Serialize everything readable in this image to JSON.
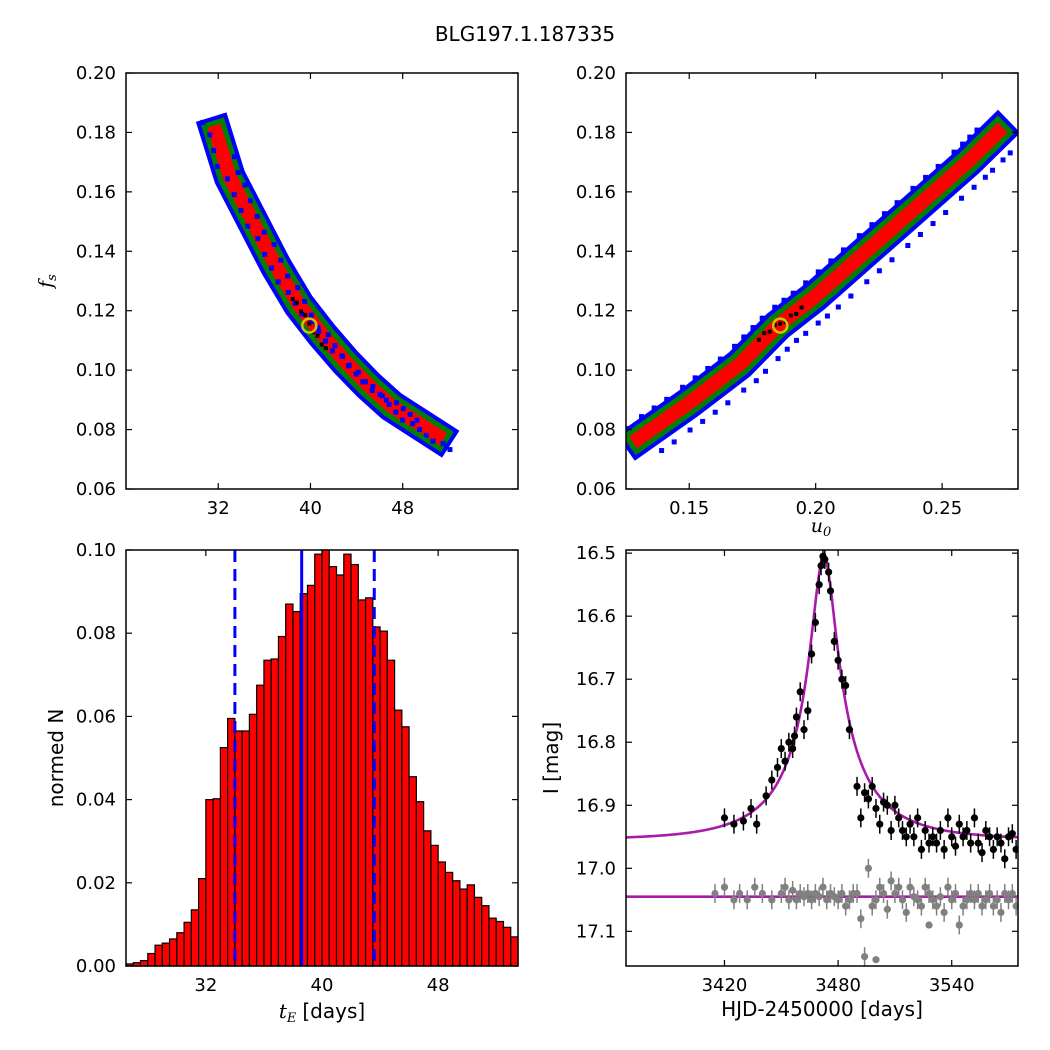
{
  "figure": {
    "title": "BLG197.1.187335"
  },
  "chart_data": [
    {
      "panel": "top-left",
      "type": "heatmap",
      "title": "",
      "xlabel": "",
      "ylabel": "f_s",
      "ylabel_math": {
        "base": "f",
        "sub": "s"
      },
      "xlim": [
        24,
        58
      ],
      "ylim": [
        0.06,
        0.2
      ],
      "xticks": [
        32,
        40,
        48
      ],
      "yticks": [
        0.06,
        0.08,
        0.1,
        0.12,
        0.14,
        0.16,
        0.18,
        0.2
      ],
      "ytick_labels": [
        "0.06",
        "0.08",
        "0.10",
        "0.12",
        "0.14",
        "0.16",
        "0.18",
        "0.20"
      ],
      "colors": {
        "outer": "#0000ff",
        "middle": "#008000",
        "inner": "#ff0000",
        "core": "#000000",
        "best_fit": "#c8c800"
      },
      "contour_centerline": [
        [
          31.8,
          0.18
        ],
        [
          33,
          0.165
        ],
        [
          35,
          0.15
        ],
        [
          37,
          0.135
        ],
        [
          39,
          0.122
        ],
        [
          41,
          0.112
        ],
        [
          43,
          0.103
        ],
        [
          45,
          0.095
        ],
        [
          47,
          0.088
        ],
        [
          49,
          0.083
        ],
        [
          51,
          0.078
        ]
      ],
      "best_fit": {
        "x": 39.9,
        "y": 0.115
      }
    },
    {
      "panel": "top-right",
      "type": "heatmap",
      "title": "",
      "xlabel": "u_0",
      "xlabel_math": {
        "base": "u",
        "sub": "0"
      },
      "ylabel": "",
      "xlim": [
        0.125,
        0.28
      ],
      "ylim": [
        0.06,
        0.2
      ],
      "xticks": [
        0.15,
        0.2,
        0.25
      ],
      "xtick_labels": [
        "0.15",
        "0.20",
        "0.25"
      ],
      "yticks": [
        0.06,
        0.08,
        0.1,
        0.12,
        0.14,
        0.16,
        0.18,
        0.2
      ],
      "ytick_labels": [
        "0.06",
        "0.08",
        "0.10",
        "0.12",
        "0.14",
        "0.16",
        "0.18",
        "0.20"
      ],
      "colors": {
        "outer": "#0000ff",
        "middle": "#008000",
        "inner": "#ff0000",
        "core": "#000000",
        "best_fit": "#c8c800"
      },
      "contour_centerline": [
        [
          0.13,
          0.077
        ],
        [
          0.15,
          0.089
        ],
        [
          0.17,
          0.102
        ],
        [
          0.185,
          0.115
        ],
        [
          0.2,
          0.125
        ],
        [
          0.22,
          0.14
        ],
        [
          0.24,
          0.155
        ],
        [
          0.26,
          0.17
        ],
        [
          0.272,
          0.18
        ]
      ],
      "best_fit": {
        "x": 0.186,
        "y": 0.115
      }
    },
    {
      "panel": "bottom-left",
      "type": "bar",
      "title": "",
      "xlabel": "[days]",
      "xlabel_math": {
        "base": "t",
        "sub": "E"
      },
      "ylabel": "normed N",
      "xlim": [
        26.5,
        53.5
      ],
      "ylim": [
        0,
        0.1
      ],
      "xticks": [
        32,
        40,
        48
      ],
      "yticks": [
        0,
        0.02,
        0.04,
        0.06,
        0.08,
        0.1
      ],
      "ytick_labels": [
        "0.00",
        "0.02",
        "0.04",
        "0.06",
        "0.08",
        "0.10"
      ],
      "bin_start": 26.5,
      "bin_width": 0.5,
      "values": [
        0.0005,
        0.0008,
        0.0013,
        0.003,
        0.005,
        0.0055,
        0.0065,
        0.008,
        0.0105,
        0.0135,
        0.021,
        0.04,
        0.0402,
        0.0525,
        0.0595,
        0.0565,
        0.0565,
        0.0605,
        0.0675,
        0.0735,
        0.0738,
        0.0792,
        0.087,
        0.0852,
        0.0895,
        0.0915,
        0.099,
        0.1,
        0.096,
        0.094,
        0.099,
        0.0965,
        0.088,
        0.0885,
        0.0815,
        0.0805,
        0.0735,
        0.0615,
        0.0575,
        0.0455,
        0.0395,
        0.0325,
        0.029,
        0.025,
        0.0225,
        0.0205,
        0.0185,
        0.0195,
        0.0165,
        0.0145,
        0.0115,
        0.0107,
        0.0093,
        0.007,
        0.0068,
        0.0058,
        0.0056,
        0.004,
        0.0032,
        0.0023,
        0.0016,
        0.0012,
        0.0008,
        0.0005,
        0.0002
      ],
      "vlines": {
        "median": 38.6,
        "lower": 34.0,
        "upper": 43.6
      },
      "colors": {
        "bar": "#ff0000",
        "line": "#0000ff"
      }
    },
    {
      "panel": "bottom-right",
      "type": "scatter",
      "title": "",
      "xlabel": "HJD-2450000 [days]",
      "ylabel": "I [mag]",
      "xlim": [
        3368,
        3575
      ],
      "ylim": [
        17.155,
        16.495
      ],
      "inverted_y": true,
      "xticks": [
        3420,
        3480,
        3540
      ],
      "yticks": [
        16.5,
        16.6,
        16.7,
        16.8,
        16.9,
        17.0,
        17.1
      ],
      "ytick_labels": [
        "16.5",
        "16.6",
        "16.7",
        "16.8",
        "16.9",
        "17.0",
        "17.1"
      ],
      "model": {
        "baseline": 16.955,
        "peak": 16.505,
        "t0": 3472.5,
        "tE": 38.6,
        "u0": 0.186
      },
      "series": [
        {
          "color": "#000000",
          "x": [
            3420,
            3425,
            3430,
            3434,
            3437,
            3442,
            3445,
            3448,
            3450,
            3452,
            3454,
            3456,
            3457,
            3458,
            3460,
            3462,
            3464,
            3466,
            3468,
            3470,
            3471,
            3472,
            3473,
            3475,
            3476,
            3478,
            3480,
            3482,
            3484,
            3486,
            3490,
            3492,
            3494,
            3496,
            3498,
            3500,
            3502,
            3504,
            3506,
            3508,
            3510,
            3512,
            3514,
            3516,
            3518,
            3520,
            3522,
            3524,
            3526,
            3528,
            3530,
            3532,
            3534,
            3536,
            3538,
            3540,
            3542,
            3544,
            3546,
            3548,
            3550,
            3552,
            3554,
            3556,
            3558,
            3560,
            3562,
            3564,
            3566,
            3568,
            3570,
            3572,
            3574
          ],
          "y": [
            16.92,
            16.93,
            16.925,
            16.905,
            16.93,
            16.885,
            16.86,
            16.84,
            16.81,
            16.83,
            16.8,
            16.81,
            16.79,
            16.76,
            16.72,
            16.78,
            16.75,
            16.66,
            16.61,
            16.55,
            16.52,
            16.505,
            16.51,
            16.53,
            16.56,
            16.64,
            16.67,
            16.7,
            16.71,
            16.78,
            16.87,
            16.92,
            16.88,
            16.89,
            16.87,
            16.905,
            16.93,
            16.895,
            16.9,
            16.94,
            16.9,
            16.92,
            16.94,
            16.95,
            16.93,
            16.95,
            16.92,
            16.97,
            16.94,
            16.96,
            16.95,
            16.96,
            16.94,
            16.97,
            16.92,
            16.95,
            16.965,
            16.93,
            16.95,
            16.94,
            16.96,
            16.92,
            16.96,
            16.975,
            16.94,
            16.95,
            16.97,
            16.95,
            16.96,
            16.985,
            16.95,
            16.945,
            16.97
          ],
          "yerr": 0.015
        },
        {
          "color": "#808080",
          "baseline": 17.045,
          "x": [
            3415,
            3420,
            3425,
            3428,
            3432,
            3436,
            3440,
            3445,
            3450,
            3452,
            3454,
            3456,
            3458,
            3460,
            3462,
            3464,
            3466,
            3468,
            3470,
            3472,
            3474,
            3476,
            3478,
            3480,
            3482,
            3484,
            3486,
            3488,
            3490,
            3492,
            3494,
            3496,
            3498,
            3500,
            3502,
            3504,
            3506,
            3508,
            3510,
            3512,
            3514,
            3516,
            3518,
            3520,
            3522,
            3524,
            3526,
            3528,
            3530,
            3532,
            3534,
            3536,
            3538,
            3540,
            3542,
            3544,
            3546,
            3548,
            3550,
            3552,
            3554,
            3556,
            3558,
            3560,
            3562,
            3564,
            3566,
            3568,
            3570,
            3572,
            3574
          ],
          "y": [
            17.04,
            17.03,
            17.05,
            17.04,
            17.05,
            17.03,
            17.04,
            17.05,
            17.04,
            17.03,
            17.05,
            17.035,
            17.05,
            17.04,
            17.045,
            17.04,
            17.05,
            17.04,
            17.045,
            17.03,
            17.05,
            17.04,
            17.045,
            17.05,
            17.04,
            17.06,
            17.05,
            17.04,
            17.04,
            17.08,
            17.14,
            17.0,
            17.06,
            17.05,
            17.03,
            17.04,
            17.065,
            17.02,
            17.04,
            17.03,
            17.05,
            17.07,
            17.03,
            17.045,
            17.05,
            17.06,
            17.03,
            17.04,
            17.05,
            17.06,
            17.045,
            17.07,
            17.03,
            17.05,
            17.04,
            17.09,
            17.06,
            17.05,
            17.04,
            17.05,
            17.04,
            17.06,
            17.05,
            17.04,
            17.06,
            17.05,
            17.07,
            17.04,
            17.05,
            17.04,
            17.06
          ],
          "outliers": [
            [
              3500,
              17.145
            ],
            [
              3528,
              17.09
            ]
          ],
          "yerr": 0.015
        }
      ],
      "colors": {
        "model": "#aa1aaa"
      }
    }
  ]
}
